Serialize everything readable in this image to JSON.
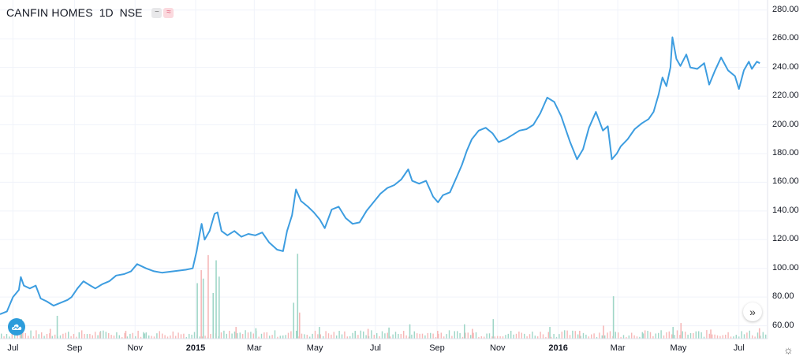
{
  "header": {
    "symbol": "CANFIN HOMES",
    "interval": "1D",
    "exchange": "NSE"
  },
  "icons": {
    "menu": "minus-icon",
    "compare": "approx-icon",
    "scroll": "chevron-double-right-icon",
    "settings": "gear-icon",
    "logo": "cloud-logo-icon"
  },
  "colors": {
    "line": "#3d9de0",
    "volume_up": "#9fd6c7",
    "volume_down": "#f6b7b7",
    "grid": "#f0f3fa",
    "axis_text": "#131722"
  },
  "chart_data": {
    "type": "line",
    "title": "",
    "xlabel": "",
    "ylabel": "",
    "ylim": [
      55,
      280
    ],
    "y_ticks": [
      "280.00",
      "260.00",
      "240.00",
      "220.00",
      "200.00",
      "180.00",
      "160.00",
      "140.00",
      "120.00",
      "100.00",
      "80.00",
      "60.00"
    ],
    "x_tick_labels": [
      {
        "label": "Jul",
        "date": "2014-07-01",
        "major": false
      },
      {
        "label": "Sep",
        "date": "2014-09-01",
        "major": false
      },
      {
        "label": "Nov",
        "date": "2014-11-01",
        "major": false
      },
      {
        "label": "2015",
        "date": "2015-01-01",
        "major": true
      },
      {
        "label": "Mar",
        "date": "2015-03-01",
        "major": false
      },
      {
        "label": "May",
        "date": "2015-05-01",
        "major": false
      },
      {
        "label": "Jul",
        "date": "2015-07-01",
        "major": false
      },
      {
        "label": "Sep",
        "date": "2015-09-01",
        "major": false
      },
      {
        "label": "Nov",
        "date": "2015-11-01",
        "major": false
      },
      {
        "label": "2016",
        "date": "2016-01-01",
        "major": true
      },
      {
        "label": "Mar",
        "date": "2016-03-01",
        "major": false
      },
      {
        "label": "May",
        "date": "2016-05-01",
        "major": false
      },
      {
        "label": "Jul",
        "date": "2016-07-01",
        "major": false
      }
    ],
    "series": [
      {
        "values": [
          [
            "2014-06-18",
            68
          ],
          [
            "2014-06-25",
            70
          ],
          [
            "2014-07-01",
            80
          ],
          [
            "2014-07-07",
            85
          ],
          [
            "2014-07-09",
            94
          ],
          [
            "2014-07-12",
            88
          ],
          [
            "2014-07-18",
            86
          ],
          [
            "2014-07-24",
            88
          ],
          [
            "2014-07-29",
            79
          ],
          [
            "2014-08-04",
            77
          ],
          [
            "2014-08-11",
            74
          ],
          [
            "2014-08-18",
            76
          ],
          [
            "2014-08-25",
            78
          ],
          [
            "2014-08-29",
            80
          ],
          [
            "2014-09-04",
            86
          ],
          [
            "2014-09-10",
            91
          ],
          [
            "2014-09-17",
            88
          ],
          [
            "2014-09-22",
            86
          ],
          [
            "2014-09-29",
            89
          ],
          [
            "2014-10-06",
            91
          ],
          [
            "2014-10-13",
            95
          ],
          [
            "2014-10-21",
            96
          ],
          [
            "2014-10-28",
            98
          ],
          [
            "2014-11-03",
            103
          ],
          [
            "2014-11-12",
            100
          ],
          [
            "2014-11-20",
            98
          ],
          [
            "2014-11-28",
            97
          ],
          [
            "2014-12-10",
            98
          ],
          [
            "2014-12-22",
            99
          ],
          [
            "2014-12-29",
            100
          ],
          [
            "2015-01-02",
            112
          ],
          [
            "2015-01-05",
            124
          ],
          [
            "2015-01-07",
            131
          ],
          [
            "2015-01-10",
            120
          ],
          [
            "2015-01-15",
            126
          ],
          [
            "2015-01-20",
            138
          ],
          [
            "2015-01-23",
            139
          ],
          [
            "2015-01-27",
            126
          ],
          [
            "2015-02-02",
            123
          ],
          [
            "2015-02-09",
            126
          ],
          [
            "2015-02-16",
            122
          ],
          [
            "2015-02-23",
            124
          ],
          [
            "2015-03-02",
            123
          ],
          [
            "2015-03-09",
            125
          ],
          [
            "2015-03-16",
            118
          ],
          [
            "2015-03-24",
            113
          ],
          [
            "2015-03-30",
            112
          ],
          [
            "2015-04-03",
            126
          ],
          [
            "2015-04-08",
            137
          ],
          [
            "2015-04-12",
            155
          ],
          [
            "2015-04-17",
            147
          ],
          [
            "2015-04-24",
            143
          ],
          [
            "2015-04-30",
            139
          ],
          [
            "2015-05-06",
            134
          ],
          [
            "2015-05-11",
            128
          ],
          [
            "2015-05-18",
            141
          ],
          [
            "2015-05-25",
            143
          ],
          [
            "2015-06-01",
            135
          ],
          [
            "2015-06-08",
            131
          ],
          [
            "2015-06-15",
            132
          ],
          [
            "2015-06-22",
            140
          ],
          [
            "2015-06-29",
            146
          ],
          [
            "2015-07-06",
            152
          ],
          [
            "2015-07-13",
            156
          ],
          [
            "2015-07-20",
            158
          ],
          [
            "2015-07-27",
            162
          ],
          [
            "2015-08-03",
            169
          ],
          [
            "2015-08-07",
            161
          ],
          [
            "2015-08-14",
            159
          ],
          [
            "2015-08-21",
            161
          ],
          [
            "2015-08-28",
            150
          ],
          [
            "2015-09-02",
            146
          ],
          [
            "2015-09-07",
            151
          ],
          [
            "2015-09-14",
            153
          ],
          [
            "2015-09-21",
            164
          ],
          [
            "2015-09-26",
            172
          ],
          [
            "2015-10-01",
            182
          ],
          [
            "2015-10-06",
            190
          ],
          [
            "2015-10-13",
            196
          ],
          [
            "2015-10-20",
            198
          ],
          [
            "2015-10-27",
            194
          ],
          [
            "2015-11-02",
            188
          ],
          [
            "2015-11-09",
            190
          ],
          [
            "2015-11-16",
            193
          ],
          [
            "2015-11-23",
            196
          ],
          [
            "2015-11-30",
            197
          ],
          [
            "2015-12-07",
            200
          ],
          [
            "2015-12-14",
            208
          ],
          [
            "2015-12-21",
            219
          ],
          [
            "2015-12-28",
            216
          ],
          [
            "2016-01-04",
            206
          ],
          [
            "2016-01-08",
            198
          ],
          [
            "2016-01-13",
            188
          ],
          [
            "2016-01-20",
            176
          ],
          [
            "2016-01-26",
            183
          ],
          [
            "2016-02-01",
            198
          ],
          [
            "2016-02-08",
            209
          ],
          [
            "2016-02-15",
            196
          ],
          [
            "2016-02-20",
            199
          ],
          [
            "2016-02-24",
            176
          ],
          [
            "2016-02-29",
            180
          ],
          [
            "2016-03-04",
            185
          ],
          [
            "2016-03-11",
            190
          ],
          [
            "2016-03-18",
            197
          ],
          [
            "2016-03-25",
            201
          ],
          [
            "2016-04-01",
            204
          ],
          [
            "2016-04-06",
            209
          ],
          [
            "2016-04-11",
            221
          ],
          [
            "2016-04-15",
            233
          ],
          [
            "2016-04-19",
            227
          ],
          [
            "2016-04-23",
            240
          ],
          [
            "2016-04-25",
            261
          ],
          [
            "2016-04-29",
            246
          ],
          [
            "2016-05-03",
            241
          ],
          [
            "2016-05-09",
            249
          ],
          [
            "2016-05-13",
            240
          ],
          [
            "2016-05-20",
            239
          ],
          [
            "2016-05-27",
            243
          ],
          [
            "2016-06-01",
            228
          ],
          [
            "2016-06-07",
            238
          ],
          [
            "2016-06-13",
            247
          ],
          [
            "2016-06-20",
            238
          ],
          [
            "2016-06-27",
            234
          ],
          [
            "2016-07-01",
            225
          ],
          [
            "2016-07-06",
            238
          ],
          [
            "2016-07-11",
            244
          ],
          [
            "2016-07-14",
            239
          ],
          [
            "2016-07-19",
            244
          ],
          [
            "2016-07-22",
            243
          ]
        ]
      }
    ],
    "volume": {
      "note_scale": "relative",
      "bars": [
        [
          "2014-07-09",
          0.3,
          "up"
        ],
        [
          "2014-08-07",
          0.15,
          "down"
        ],
        [
          "2014-08-14",
          0.35,
          "up"
        ],
        [
          "2014-09-26",
          0.1,
          "down"
        ],
        [
          "2014-10-22",
          0.12,
          "down"
        ],
        [
          "2014-11-10",
          0.08,
          "up"
        ],
        [
          "2015-01-02",
          0.85,
          "up"
        ],
        [
          "2015-01-06",
          1.05,
          "down"
        ],
        [
          "2015-01-08",
          0.92,
          "up"
        ],
        [
          "2015-01-13",
          1.28,
          "down"
        ],
        [
          "2015-01-18",
          0.7,
          "up"
        ],
        [
          "2015-01-21",
          1.2,
          "up"
        ],
        [
          "2015-01-24",
          0.95,
          "up"
        ],
        [
          "2015-02-10",
          0.18,
          "down"
        ],
        [
          "2015-03-02",
          0.16,
          "up"
        ],
        [
          "2015-04-09",
          0.55,
          "up"
        ],
        [
          "2015-04-13",
          1.3,
          "up"
        ],
        [
          "2015-04-15",
          0.4,
          "down"
        ],
        [
          "2015-05-05",
          0.18,
          "up"
        ],
        [
          "2015-06-10",
          0.12,
          "up"
        ],
        [
          "2015-06-23",
          0.15,
          "down"
        ],
        [
          "2015-07-14",
          0.17,
          "up"
        ],
        [
          "2015-08-04",
          0.22,
          "up"
        ],
        [
          "2015-09-01",
          0.12,
          "down"
        ],
        [
          "2015-09-28",
          0.22,
          "up"
        ],
        [
          "2015-10-06",
          0.15,
          "down"
        ],
        [
          "2015-10-27",
          0.3,
          "up"
        ],
        [
          "2015-12-23",
          0.18,
          "up"
        ],
        [
          "2016-01-22",
          0.12,
          "down"
        ],
        [
          "2016-02-15",
          0.2,
          "down"
        ],
        [
          "2016-02-25",
          0.65,
          "up"
        ],
        [
          "2016-03-26",
          0.08,
          "up"
        ],
        [
          "2016-04-25",
          0.18,
          "up"
        ],
        [
          "2016-05-03",
          0.24,
          "down"
        ],
        [
          "2016-06-02",
          0.14,
          "down"
        ],
        [
          "2016-07-21",
          0.16,
          "down"
        ]
      ]
    }
  }
}
